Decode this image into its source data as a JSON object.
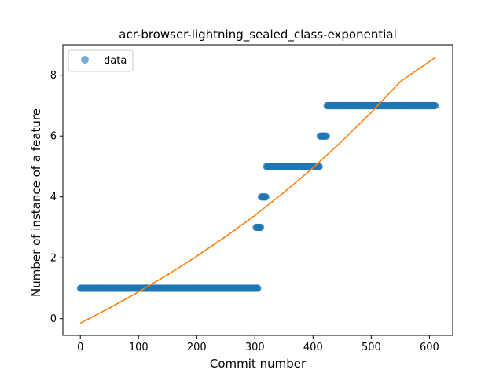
{
  "chart_data": {
    "type": "scatter",
    "title": "acr-browser-lightning_sealed_class-exponential",
    "xlabel": "Commit number",
    "ylabel": "Number of instance of a feature",
    "xlim": [
      -30,
      640
    ],
    "ylim": [
      -0.55,
      9.0
    ],
    "xticks": [
      0,
      100,
      200,
      300,
      400,
      500,
      600
    ],
    "yticks": [
      0,
      2,
      4,
      6,
      8
    ],
    "grid": false,
    "legend": {
      "position": "top-left",
      "entries": [
        "data"
      ]
    },
    "colors": {
      "data": "#1f77b4",
      "fit": "#ff7f0e"
    },
    "series": [
      {
        "name": "data",
        "kind": "scatter",
        "segments": [
          {
            "x_start": 0,
            "x_end": 305,
            "y": 1
          },
          {
            "x_start": 302,
            "x_end": 310,
            "y": 3
          },
          {
            "x_start": 311,
            "x_end": 319,
            "y": 4
          },
          {
            "x_start": 320,
            "x_end": 411,
            "y": 5
          },
          {
            "x_start": 412,
            "x_end": 423,
            "y": 6
          },
          {
            "x_start": 424,
            "x_end": 610,
            "y": 7
          }
        ]
      },
      {
        "kind": "line",
        "x": [
          0,
          50,
          100,
          150,
          200,
          250,
          300,
          350,
          400,
          450,
          500,
          550,
          610
        ],
        "y": [
          -0.15,
          0.35,
          0.88,
          1.44,
          2.05,
          2.7,
          3.39,
          4.15,
          4.96,
          5.84,
          6.78,
          7.79,
          8.58
        ]
      }
    ]
  }
}
